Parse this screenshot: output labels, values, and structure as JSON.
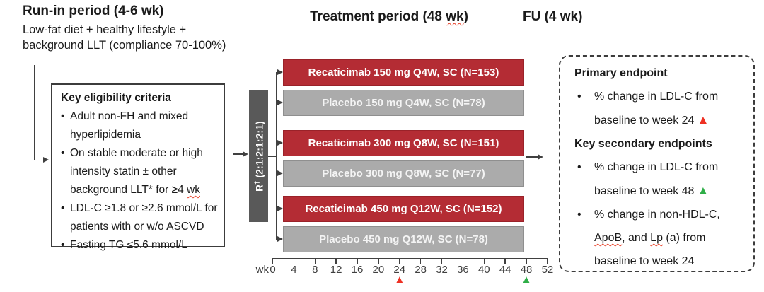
{
  "colors": {
    "drug_bar": "#B42C34",
    "placebo_bar": "#ABABAB",
    "randomization_box": "#595959",
    "marker_week24": "#EE3124",
    "marker_week48": "#2FAE48",
    "connector_line": "#404040",
    "spellcheck_underline": "#E8442C"
  },
  "icons": {
    "triangle_up": "▲"
  },
  "spellcheck_words": [
    "wk",
    "ApoB",
    "Lp"
  ],
  "headers": {
    "run_in_title": "Run-in period (4-6 wk)",
    "run_in_sub_line1": "Low-fat diet + healthy lifestyle +",
    "run_in_sub_line2": "background LLT (compliance 70-100%)",
    "treatment_title": "Treatment period (48 wk)",
    "fu_title": "FU (4 wk)"
  },
  "eligibility": {
    "title": "Key eligibility criteria",
    "bullets": [
      {
        "lines": [
          "Adult non-FH and mixed",
          "hyperlipidemia"
        ]
      },
      {
        "lines": [
          "On stable moderate or high",
          "intensity statin ± other",
          "background LLT* for ≥4 wk"
        ]
      },
      {
        "lines": [
          "LDL-C ≥1.8 or ≥2.6 mmol/L for",
          "patients with or w/o ASCVD"
        ]
      },
      {
        "lines": [
          "Fasting TG ≤5.6 mmol/L"
        ]
      }
    ]
  },
  "randomization": {
    "r": "R",
    "dagger": "†",
    "ratio": "(2:1:2:1:2:1)"
  },
  "arms": [
    {
      "label": "Recaticimab 150 mg Q4W, SC (N=153)",
      "type": "drug"
    },
    {
      "label": "Placebo 150 mg Q4W, SC (N=78)",
      "type": "placebo"
    },
    {
      "label": "Recaticimab 300 mg Q8W, SC (N=151)",
      "type": "drug"
    },
    {
      "label": "Placebo 300 mg Q8W, SC (N=77)",
      "type": "placebo"
    },
    {
      "label": "Recaticimab 450 mg Q12W, SC (N=152)",
      "type": "drug"
    },
    {
      "label": "Placebo 450 mg Q12W, SC (N=78)",
      "type": "placebo"
    }
  ],
  "timeline": {
    "unit": "wk",
    "tick_labels": [
      "0",
      "4",
      "8",
      "12",
      "16",
      "20",
      "24",
      "28",
      "32",
      "36",
      "40",
      "44",
      "48",
      "52"
    ],
    "markers": [
      {
        "week": 24,
        "color": "#EE3124"
      },
      {
        "week": 48,
        "color": "#2FAE48"
      }
    ]
  },
  "endpoints": {
    "primary_title": "Primary endpoint",
    "primary_bullets": [
      {
        "lines": [
          "% change in LDL-C from",
          "baseline to week 24"
        ],
        "marker": "week24"
      }
    ],
    "secondary_title": "Key secondary endpoints",
    "secondary_bullets": [
      {
        "lines": [
          "% change in LDL-C from",
          "baseline to week 48"
        ],
        "marker": "week48"
      },
      {
        "lines": [
          "% change in non-HDL-C,",
          "ApoB, and Lp (a) from",
          "baseline to week 24"
        ],
        "marker": null
      }
    ]
  }
}
